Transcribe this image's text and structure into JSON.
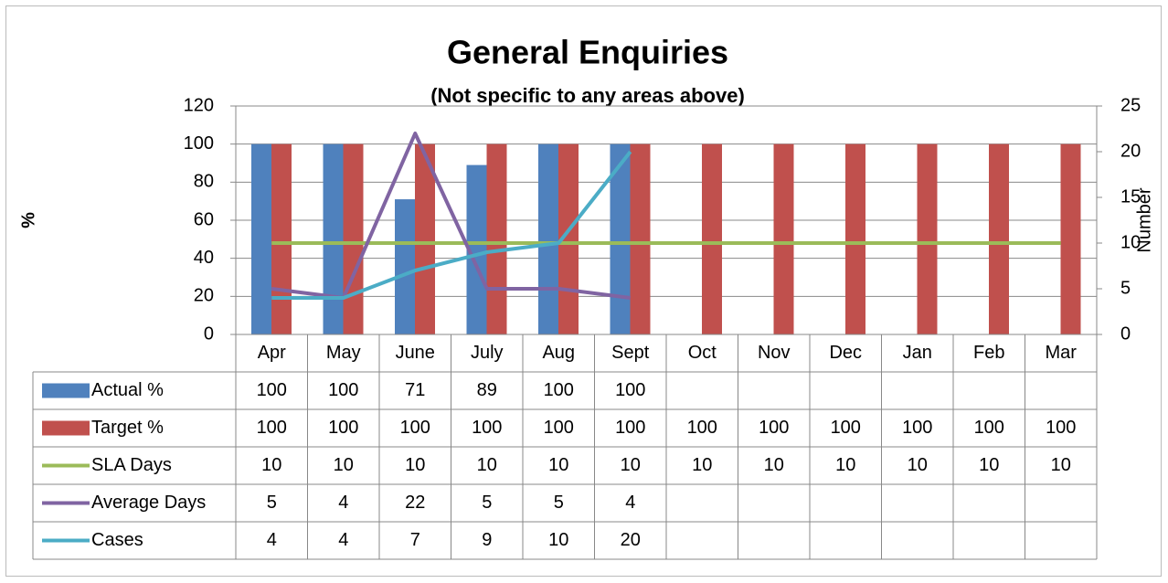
{
  "chart_data": {
    "type": "bar_line_table",
    "title": "General Enquiries",
    "subtitle": "(Not specific to any areas above)",
    "y_label": "%",
    "y2_label": "Number",
    "categories": [
      "Apr",
      "May",
      "June",
      "July",
      "Aug",
      "Sept",
      "Oct",
      "Nov",
      "Dec",
      "Jan",
      "Feb",
      "Mar"
    ],
    "ylim": [
      0,
      120
    ],
    "yticks": [
      0,
      20,
      40,
      60,
      80,
      100,
      120
    ],
    "y2lim": [
      0,
      25
    ],
    "y2ticks": [
      0,
      5,
      10,
      15,
      20,
      25
    ],
    "grid": true,
    "series": [
      {
        "name": "Actual %",
        "kind": "bar",
        "color": "#4f81bd",
        "values": [
          100,
          100,
          71,
          89,
          100,
          100,
          null,
          null,
          null,
          null,
          null,
          null
        ]
      },
      {
        "name": "Target %",
        "kind": "bar",
        "color": "#c0504d",
        "values": [
          100,
          100,
          100,
          100,
          100,
          100,
          100,
          100,
          100,
          100,
          100,
          100
        ]
      },
      {
        "name": "SLA Days",
        "kind": "line",
        "axis": "y2",
        "color": "#9bbb59",
        "values": [
          10,
          10,
          10,
          10,
          10,
          10,
          10,
          10,
          10,
          10,
          10,
          10
        ]
      },
      {
        "name": "Average Days",
        "kind": "line",
        "axis": "y2",
        "color": "#8064a2",
        "values": [
          5,
          4,
          22,
          5,
          5,
          4,
          null,
          null,
          null,
          null,
          null,
          null
        ]
      },
      {
        "name": "Cases",
        "kind": "line",
        "axis": "y2",
        "color": "#4bacc6",
        "values": [
          4,
          4,
          7,
          9,
          10,
          20,
          null,
          null,
          null,
          null,
          null,
          null
        ]
      }
    ]
  }
}
